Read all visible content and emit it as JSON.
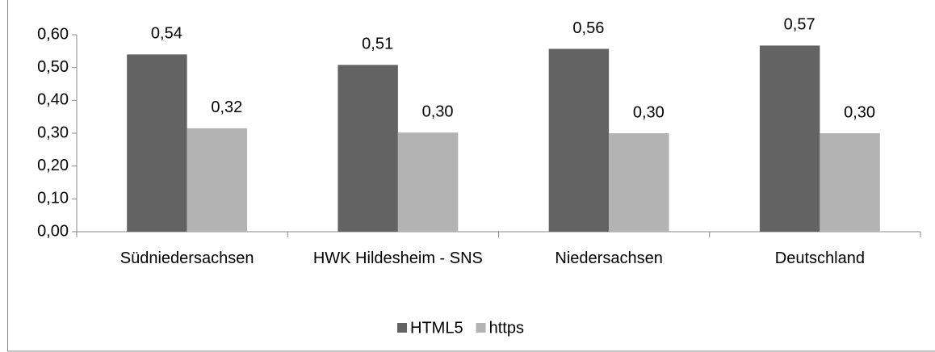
{
  "chart_data": {
    "type": "bar",
    "categories": [
      "Südniedersachsen",
      "HWK Hildesheim - SNS",
      "Niedersachsen",
      "Deutschland"
    ],
    "series": [
      {
        "name": "HTML5",
        "color": "#636363",
        "values": [
          0.54,
          0.508,
          0.557,
          0.567
        ],
        "value_labels": [
          "0,54",
          "0,51",
          "0,56",
          "0,57"
        ]
      },
      {
        "name": "https",
        "color": "#b3b3b3",
        "values": [
          0.315,
          0.302,
          0.3,
          0.3
        ],
        "value_labels": [
          "0,32",
          "0,30",
          "0,30",
          "0,30"
        ]
      }
    ],
    "ylim": [
      0,
      0.6
    ],
    "yticks": [
      {
        "value": 0,
        "label": "0,00"
      },
      {
        "value": 0.1,
        "label": "0,10"
      },
      {
        "value": 0.2,
        "label": "0,20"
      },
      {
        "value": 0.3,
        "label": "0,30"
      },
      {
        "value": 0.4,
        "label": "0,40"
      },
      {
        "value": 0.5,
        "label": "0,50"
      },
      {
        "value": 0.6,
        "label": "0,60"
      }
    ],
    "grid": false,
    "legend": "bottom"
  }
}
